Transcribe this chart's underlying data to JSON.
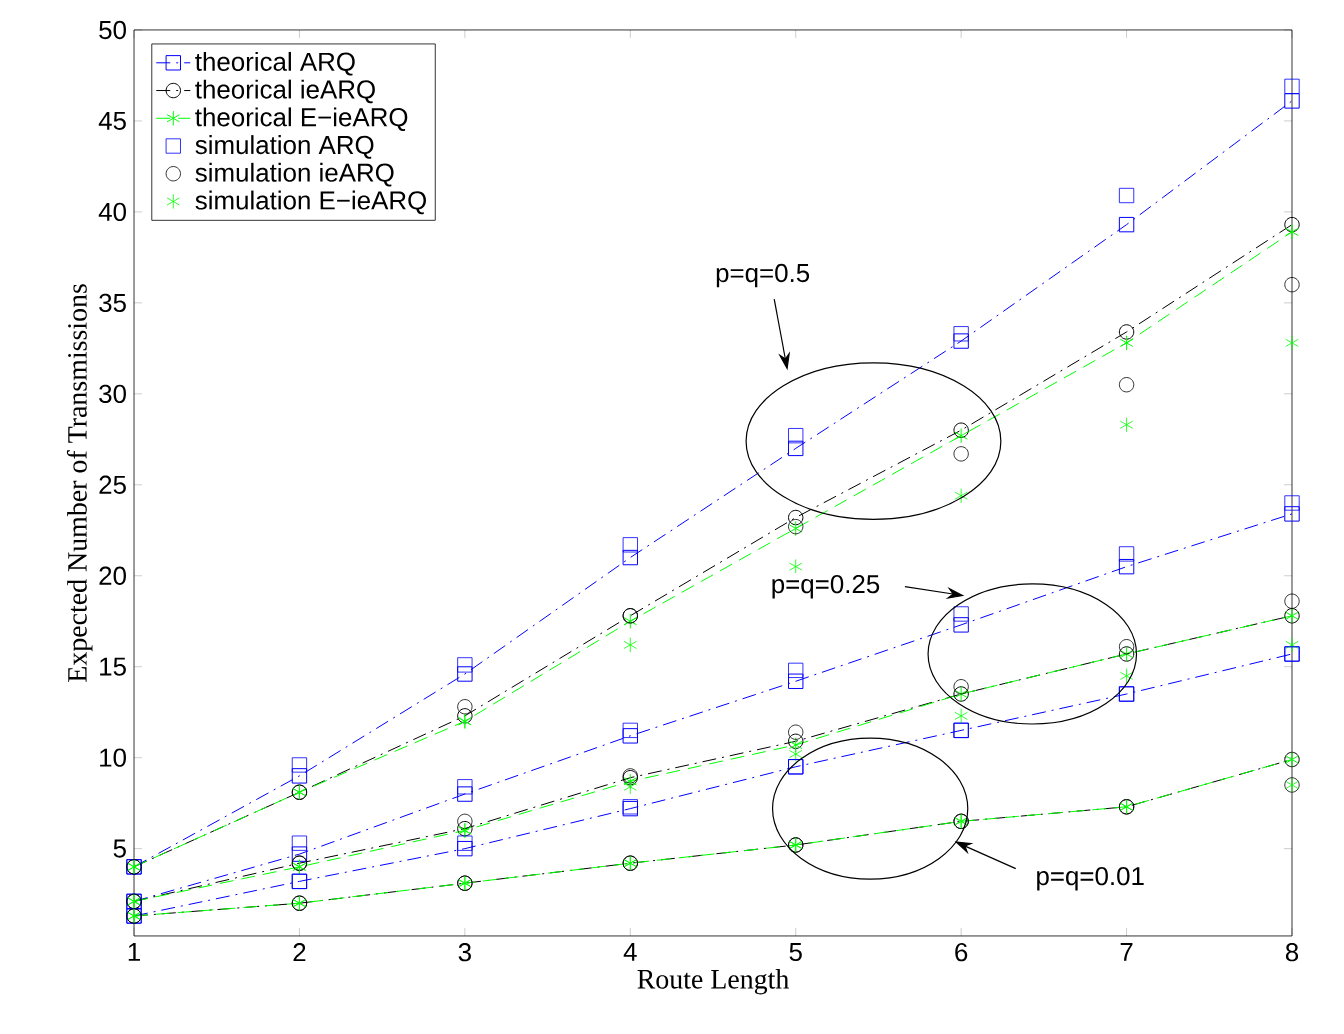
{
  "chart_data": {
    "type": "line",
    "xlabel": "Route Length",
    "ylabel": "Expected Number of Transmissions",
    "x": [
      1,
      2,
      3,
      4,
      5,
      6,
      7,
      8
    ],
    "xlim": [
      1,
      8
    ],
    "xticks": [
      1,
      2,
      3,
      4,
      5,
      6,
      7,
      8
    ],
    "ylim": [
      0.2,
      50
    ],
    "yticks": [
      5,
      10,
      15,
      20,
      25,
      30,
      35,
      40,
      45,
      50
    ],
    "legend": "top left",
    "series": [
      {
        "name": "theorical ARQ",
        "color": "#0000ff",
        "marker": "square",
        "line_style": "dashdot",
        "values": [
          4.0,
          9.0,
          14.6,
          21.0,
          27.0,
          32.9,
          39.3,
          46.1
        ]
      },
      {
        "name": "theorical ieARQ",
        "color": "#000000",
        "marker": "circle",
        "line_style": "dashdot",
        "values": [
          4.0,
          8.1,
          12.3,
          17.8,
          23.2,
          28.0,
          33.4,
          39.3
        ]
      },
      {
        "name": "theorical E−ieARQ",
        "color": "#00ff00",
        "marker": "cross",
        "line_style": "dashed",
        "values": [
          4.0,
          8.1,
          12.0,
          17.5,
          22.6,
          27.7,
          32.8,
          38.9
        ]
      },
      {
        "name": "simulation ARQ",
        "type": "scatter",
        "color": "#0000ff",
        "marker": "square",
        "values": [
          4.0,
          9.6,
          15.1,
          21.7,
          27.7,
          33.3,
          40.9,
          46.9
        ]
      },
      {
        "name": "simulation ieARQ",
        "type": "scatter",
        "color": "#000000",
        "marker": "circle",
        "values": [
          4.0,
          8.1,
          12.8,
          17.8,
          22.7,
          26.7,
          30.5,
          36.0
        ]
      },
      {
        "name": "simulation E−ieARQ",
        "type": "scatter",
        "color": "#00ff00",
        "marker": "cross",
        "values": [
          4.0,
          8.1,
          12.0,
          16.2,
          20.5,
          24.4,
          28.3,
          32.8
        ]
      },
      {
        "color": "#0000ff",
        "marker": "square",
        "line_style": "dashdot",
        "values": [
          2.1,
          4.7,
          8.0,
          11.2,
          14.2,
          17.3,
          20.5,
          23.4
        ]
      },
      {
        "color": "#000000",
        "marker": "circle",
        "line_style": "dashdot",
        "values": [
          2.1,
          4.2,
          6.1,
          8.9,
          10.9,
          13.5,
          15.7,
          17.8
        ]
      },
      {
        "color": "#00ff00",
        "marker": "cross",
        "line_style": "dashed",
        "values": [
          2.1,
          4.0,
          6.0,
          8.7,
          10.7,
          13.5,
          15.7,
          17.8
        ]
      },
      {
        "type": "scatter",
        "color": "#0000ff",
        "marker": "square",
        "values": [
          2.1,
          5.3,
          8.4,
          11.5,
          14.8,
          17.9,
          21.2,
          24.0
        ]
      },
      {
        "type": "scatter",
        "color": "#000000",
        "marker": "circle",
        "values": [
          2.1,
          4.2,
          6.5,
          9.0,
          11.4,
          13.9,
          16.1,
          18.6
        ]
      },
      {
        "type": "scatter",
        "color": "#00ff00",
        "marker": "cross",
        "values": [
          2.1,
          4.0,
          6.0,
          8.4,
          10.2,
          12.3,
          14.5,
          16.2
        ]
      },
      {
        "color": "#0000ff",
        "marker": "square",
        "line_style": "dashdot",
        "values": [
          1.3,
          3.2,
          5.0,
          7.2,
          9.5,
          11.5,
          13.5,
          15.7
        ]
      },
      {
        "color": "#000000",
        "marker": "circle",
        "line_style": "dashdot",
        "values": [
          1.3,
          2.0,
          3.1,
          4.2,
          5.2,
          6.5,
          7.3,
          9.9
        ]
      },
      {
        "color": "#00ff00",
        "marker": "cross",
        "line_style": "dashed",
        "values": [
          1.3,
          2.0,
          3.1,
          4.2,
          5.2,
          6.5,
          7.3,
          9.9
        ]
      },
      {
        "type": "scatter",
        "color": "#0000ff",
        "marker": "square",
        "values": [
          1.3,
          3.2,
          5.3,
          7.3,
          9.5,
          11.5,
          13.5,
          15.7
        ]
      },
      {
        "type": "scatter",
        "color": "#000000",
        "marker": "circle",
        "values": [
          1.3,
          2.0,
          3.1,
          4.2,
          5.2,
          6.5,
          7.3,
          8.5
        ]
      },
      {
        "type": "scatter",
        "color": "#00ff00",
        "marker": "cross",
        "values": [
          1.3,
          2.0,
          3.1,
          4.2,
          5.2,
          6.5,
          7.3,
          8.5
        ]
      }
    ],
    "annotations": [
      "p=q=0.5",
      "p=q=0.25",
      "p=q=0.01"
    ]
  }
}
